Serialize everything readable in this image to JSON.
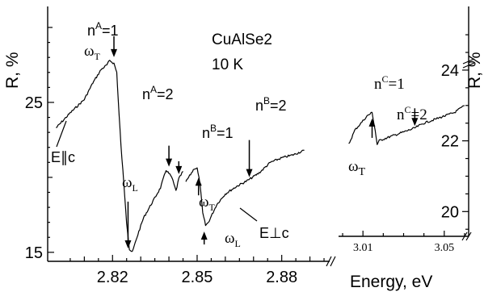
{
  "chart_data": {
    "type": "line",
    "title": "CuAlSe2",
    "subtitle": "10 K",
    "xlabel": "Energy, eV",
    "ylabel_left": "R, %",
    "ylabel_right": "R, %",
    "x_ticks": [
      "2.82",
      "2.85",
      "2.88"
    ],
    "xlim": [
      2.797,
      2.897
    ],
    "y_left_ticks": [
      "25",
      "15"
    ],
    "ylim_left": [
      14.4,
      31.4
    ],
    "inset": {
      "x_ticks": [
        "3.01",
        "3.05"
      ],
      "xlim": [
        2.998,
        3.062
      ],
      "y_right_ticks": [
        "24",
        "22",
        "20"
      ],
      "ylim_right": [
        19.3,
        25.8
      ]
    },
    "series": [
      {
        "polarization": "E||c",
        "label": "E∥c",
        "axis": "left",
        "x": [
          2.8,
          2.805,
          2.81,
          2.813,
          2.816,
          2.818,
          2.819,
          2.8205,
          2.8215,
          2.822,
          2.823,
          2.824,
          2.825,
          2.826,
          2.827,
          2.829,
          2.831,
          2.834,
          2.837,
          2.839,
          2.841,
          2.8425,
          2.8435,
          2.845
        ],
        "y": [
          23.3,
          24.3,
          25.2,
          26.3,
          27.2,
          27.5,
          27.8,
          27.6,
          27.0,
          25.2,
          22.1,
          19.6,
          17.0,
          15.2,
          15.0,
          16.2,
          17.3,
          18.3,
          19.3,
          20.5,
          20.0,
          19.1,
          19.9,
          20.4
        ]
      },
      {
        "polarization": "E⊥c",
        "label": "E⊥c",
        "axis": "left",
        "x": [
          2.846,
          2.848,
          2.849,
          2.85,
          2.851,
          2.852,
          2.853,
          2.854,
          2.855,
          2.856,
          2.857,
          2.86,
          2.864,
          2.868,
          2.872,
          2.876,
          2.88,
          2.884,
          2.888
        ],
        "y": [
          19.7,
          20.3,
          20.6,
          20.6,
          19.6,
          17.6,
          16.8,
          17.0,
          17.4,
          17.8,
          18.2,
          18.9,
          19.4,
          19.8,
          20.3,
          21.0,
          21.3,
          21.5,
          21.8
        ]
      },
      {
        "polarization": "E⊥c",
        "label": "",
        "axis": "right",
        "x": [
          3.003,
          3.006,
          3.009,
          3.012,
          3.0145,
          3.016,
          3.017,
          3.018,
          3.02,
          3.025,
          3.03,
          3.035,
          3.04,
          3.045,
          3.05,
          3.055,
          3.06
        ],
        "y": [
          21.9,
          22.3,
          22.5,
          22.7,
          22.8,
          22.3,
          21.9,
          22.0,
          22.05,
          22.15,
          22.25,
          22.35,
          22.5,
          22.6,
          22.7,
          22.8,
          23.0
        ]
      }
    ],
    "annotations": [
      {
        "label_main": "n",
        "label_sup": "A",
        "label_rest": "=1",
        "sub": "ω",
        "sub_sub": "T",
        "x": 2.8205,
        "y": 27.8,
        "kind": "arrow-down"
      },
      {
        "label_main": "n",
        "label_sup": "A",
        "label_rest": "=2",
        "x": 2.84,
        "y": 20.5,
        "kind": "arrow-down"
      },
      {
        "x": 2.8435,
        "y": 20.0,
        "kind": "arrow-down"
      },
      {
        "label_main": "ω",
        "label_sub": "L",
        "x": 2.8255,
        "y": 15.1,
        "kind": "arrow-down"
      },
      {
        "label_main": "n",
        "label_sup": "B",
        "label_rest": "=1",
        "x": 2.8505,
        "y": 20.2,
        "kind": "arrow-up",
        "sub": "ω",
        "sub_sub": "T"
      },
      {
        "label_main": "ω",
        "label_sub": "L",
        "x": 2.8525,
        "y": 16.6,
        "kind": "arrow-up"
      },
      {
        "label_main": "n",
        "label_sup": "B",
        "label_rest": "=2",
        "x": 2.8685,
        "y": 19.8,
        "kind": "arrow-down"
      },
      {
        "label_main": "n",
        "label_sup": "C",
        "label_rest": "=1",
        "kind": "text"
      },
      {
        "label_main": "n",
        "label_sup": "C",
        "label_rest": "=2",
        "x": 3.0355,
        "y": 22.35,
        "kind": "arrow-down"
      },
      {
        "label_main": "ω",
        "label_sub": "T",
        "x": 3.0145,
        "y": 22.7,
        "kind": "arrow-up"
      }
    ]
  }
}
